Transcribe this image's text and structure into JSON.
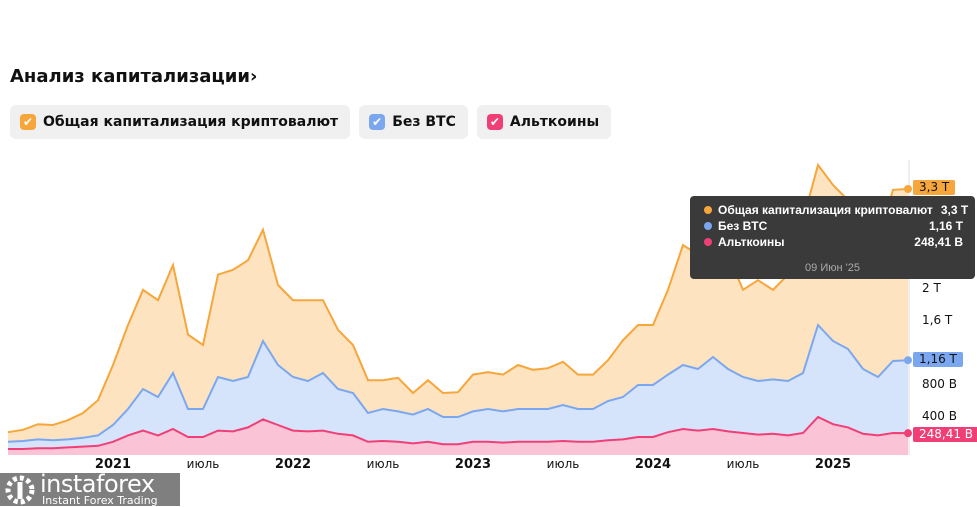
{
  "header": {
    "title": "Анализ капитализации›"
  },
  "legend": [
    {
      "label": "Общая капитализация криптовалют",
      "color": "#f6a63a"
    },
    {
      "label": "Без BTC",
      "color": "#7ba7f0"
    },
    {
      "label": "Альткоины",
      "color": "#f03f77"
    }
  ],
  "tooltip": {
    "rows": [
      {
        "label": "Общая капитализация криптовалют",
        "value": "3,3 T"
      },
      {
        "label": "Без BTC",
        "value": "1,16 T"
      },
      {
        "label": "Альткоины",
        "value": "248,41 B"
      }
    ],
    "date": "09 Июн '25"
  },
  "logo": {
    "name": "instaforex",
    "tagline": "Instant Forex Trading"
  },
  "chart_data": {
    "type": "area",
    "title": "Анализ капитализации",
    "x_start": "2020-06",
    "x_step": "month",
    "x_end": "2025-06-09",
    "xticks": [
      {
        "label": "2021",
        "i": 7,
        "year": true
      },
      {
        "label": "июль",
        "i": 13
      },
      {
        "label": "2022",
        "i": 19,
        "year": true
      },
      {
        "label": "июль",
        "i": 25
      },
      {
        "label": "2023",
        "i": 31,
        "year": true
      },
      {
        "label": "июль",
        "i": 37
      },
      {
        "label": "2024",
        "i": 43,
        "year": true
      },
      {
        "label": "июль",
        "i": 49
      },
      {
        "label": "2025",
        "i": 55,
        "year": true
      }
    ],
    "yticks": [
      {
        "label": "400 B",
        "v": 0.4
      },
      {
        "label": "800 B",
        "v": 0.8
      },
      {
        "label": "1,6 T",
        "v": 1.6
      },
      {
        "label": "2 T",
        "v": 2.0
      }
    ],
    "yunit": "T",
    "ylim": [
      0,
      3.7
    ],
    "series": [
      {
        "name": "Общая капитализация криптовалют",
        "last_label": "3,3 T",
        "values": [
          0.26,
          0.29,
          0.36,
          0.35,
          0.41,
          0.5,
          0.66,
          1.1,
          1.6,
          2.04,
          1.91,
          2.35,
          1.48,
          1.35,
          2.23,
          2.29,
          2.41,
          2.79,
          2.1,
          1.91,
          1.91,
          1.91,
          1.54,
          1.35,
          0.91,
          0.91,
          0.94,
          0.75,
          0.91,
          0.75,
          0.76,
          0.98,
          1.01,
          0.98,
          1.1,
          1.04,
          1.06,
          1.14,
          0.98,
          0.98,
          1.16,
          1.41,
          1.6,
          1.6,
          2.04,
          2.6,
          2.48,
          2.79,
          2.48,
          2.04,
          2.16,
          2.04,
          2.23,
          2.91,
          3.6,
          3.35,
          3.16,
          2.7,
          2.66,
          3.29,
          3.3
        ]
      },
      {
        "name": "Без BTC",
        "last_label": "1,16 T",
        "values": [
          0.14,
          0.15,
          0.17,
          0.16,
          0.17,
          0.19,
          0.22,
          0.35,
          0.55,
          0.8,
          0.7,
          1.0,
          0.55,
          0.55,
          0.95,
          0.9,
          0.95,
          1.4,
          1.1,
          0.95,
          0.9,
          1.0,
          0.8,
          0.75,
          0.5,
          0.55,
          0.52,
          0.48,
          0.55,
          0.45,
          0.45,
          0.52,
          0.55,
          0.52,
          0.55,
          0.55,
          0.55,
          0.6,
          0.55,
          0.55,
          0.65,
          0.7,
          0.85,
          0.85,
          0.98,
          1.1,
          1.05,
          1.2,
          1.05,
          0.95,
          0.9,
          0.92,
          0.9,
          1.0,
          1.6,
          1.4,
          1.3,
          1.05,
          0.95,
          1.15,
          1.16
        ]
      },
      {
        "name": "Альткоины",
        "last_label": "248,41 B",
        "values": [
          0.05,
          0.05,
          0.06,
          0.06,
          0.07,
          0.08,
          0.09,
          0.14,
          0.22,
          0.28,
          0.22,
          0.3,
          0.2,
          0.2,
          0.28,
          0.27,
          0.32,
          0.42,
          0.35,
          0.28,
          0.27,
          0.28,
          0.24,
          0.22,
          0.14,
          0.15,
          0.14,
          0.12,
          0.14,
          0.11,
          0.11,
          0.14,
          0.14,
          0.13,
          0.14,
          0.14,
          0.14,
          0.15,
          0.14,
          0.14,
          0.16,
          0.17,
          0.2,
          0.2,
          0.26,
          0.3,
          0.28,
          0.3,
          0.27,
          0.25,
          0.23,
          0.24,
          0.22,
          0.25,
          0.45,
          0.36,
          0.32,
          0.24,
          0.22,
          0.25,
          0.248
        ]
      }
    ],
    "fills": [
      "#fde3c0",
      "#d6e4fb",
      "#fbc3d6"
    ]
  }
}
